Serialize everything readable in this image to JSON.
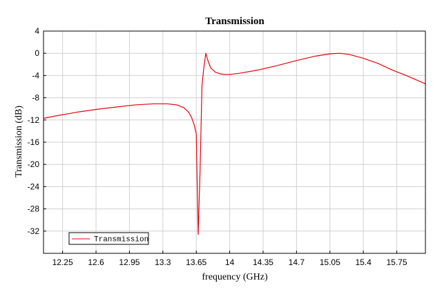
{
  "chart_data": {
    "type": "line",
    "title": "Transmission",
    "xlabel": "frequency (GHz)",
    "ylabel": "Transmission (dB)",
    "xlim": [
      12.05,
      16.05
    ],
    "ylim": [
      -36,
      4
    ],
    "x_ticks": [
      12.25,
      12.6,
      12.95,
      13.3,
      13.65,
      14,
      14.35,
      14.7,
      15.05,
      15.4,
      15.75
    ],
    "x_tick_labels": [
      "12.25",
      "12.6",
      "12.95",
      "13.3",
      "13.65",
      "14",
      "14.35",
      "14.7",
      "15.05",
      "15.4",
      "15.75"
    ],
    "y_ticks": [
      4,
      0,
      -4,
      -8,
      -12,
      -16,
      -20,
      -24,
      -28,
      -32
    ],
    "y_tick_labels": [
      "4",
      "0",
      "-4",
      "-8",
      "-12",
      "-16",
      "-20",
      "-24",
      "-28",
      "-32"
    ],
    "grid": true,
    "legend_position": "bottom-left",
    "colors": {
      "series": "#e8000b",
      "grid": "#d0d0d0",
      "axes": "#000000"
    },
    "series": [
      {
        "name": "Transmission",
        "x": [
          12.05,
          12.2,
          12.4,
          12.6,
          12.8,
          13.0,
          13.2,
          13.35,
          13.45,
          13.52,
          13.57,
          13.6,
          13.63,
          13.65,
          13.67,
          13.69,
          13.71,
          13.73,
          13.75,
          13.77,
          13.8,
          13.85,
          13.9,
          13.95,
          14.0,
          14.1,
          14.3,
          14.5,
          14.7,
          14.9,
          15.05,
          15.15,
          15.25,
          15.4,
          15.55,
          15.7,
          15.85,
          16.05
        ],
        "y": [
          -11.7,
          -11.2,
          -10.6,
          -10.1,
          -9.7,
          -9.3,
          -9.1,
          -9.1,
          -9.3,
          -9.8,
          -10.6,
          -11.5,
          -13.0,
          -14.5,
          -32.6,
          -21.0,
          -5.7,
          -2.5,
          0.0,
          -1.2,
          -2.6,
          -3.4,
          -3.7,
          -3.8,
          -3.8,
          -3.6,
          -3.0,
          -2.2,
          -1.3,
          -0.5,
          -0.1,
          0.0,
          -0.2,
          -0.9,
          -1.8,
          -3.0,
          -4.0,
          -5.5
        ]
      }
    ]
  }
}
